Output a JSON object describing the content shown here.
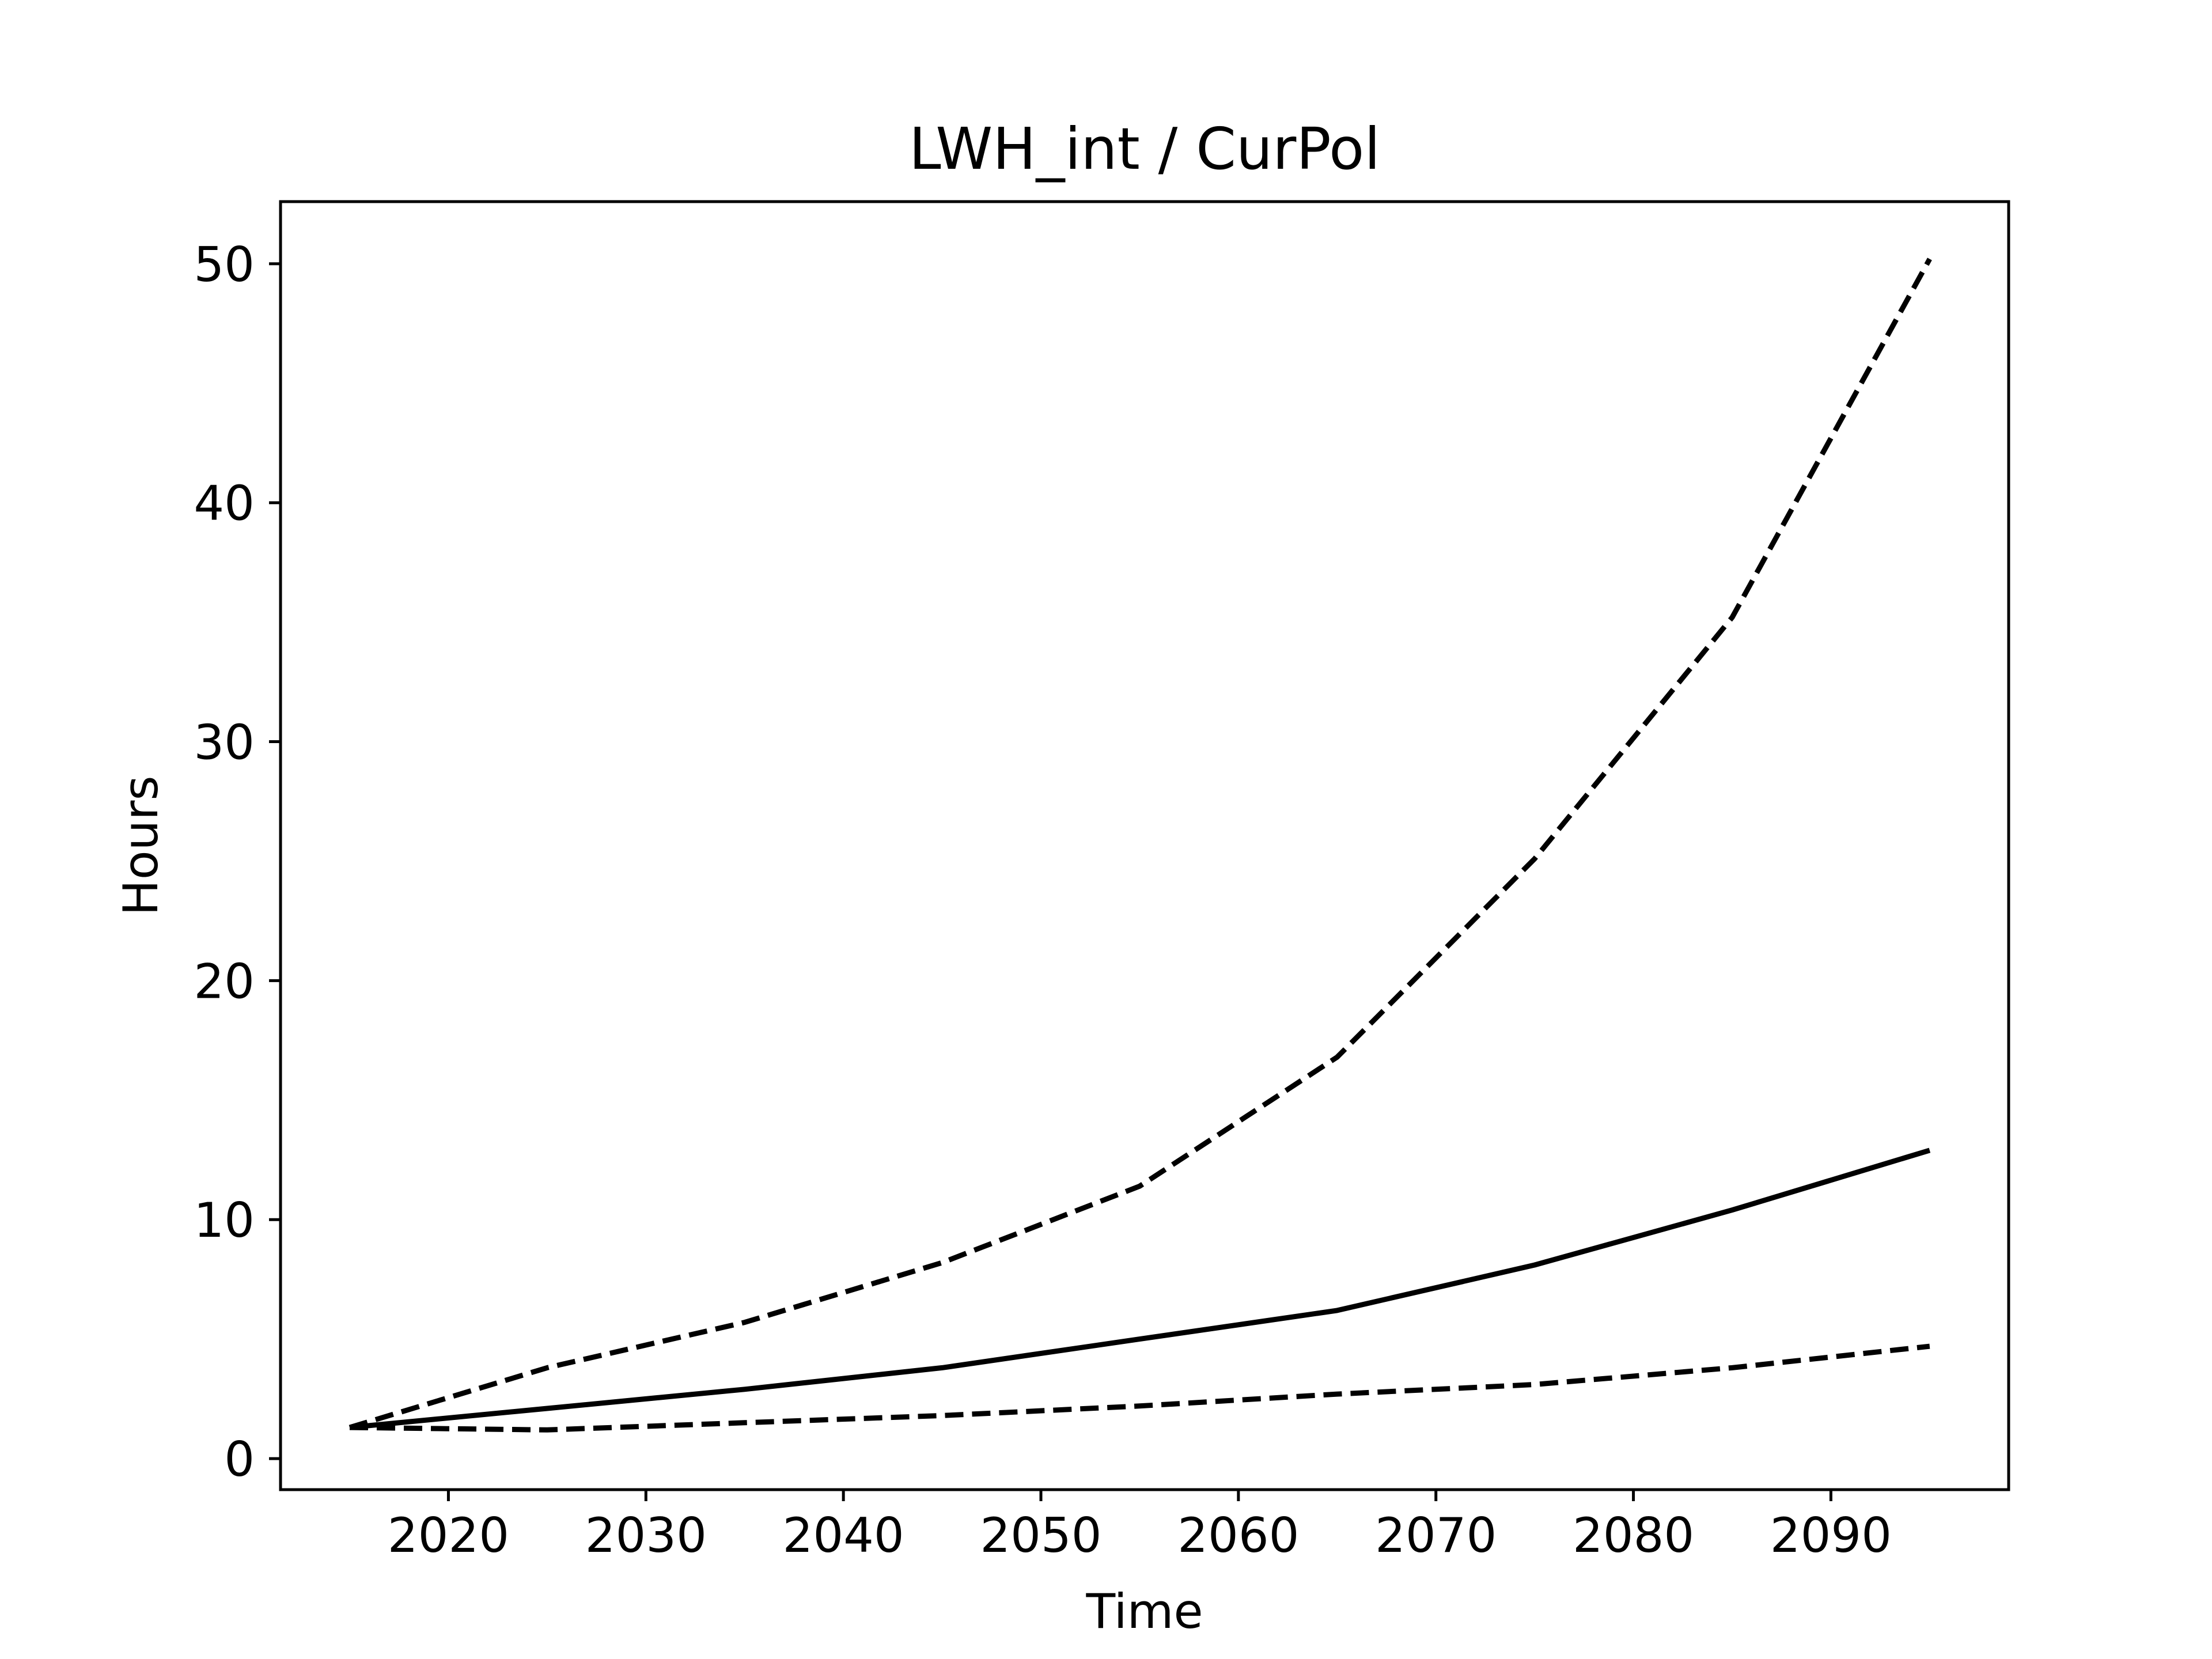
{
  "chart_data": {
    "type": "line",
    "title": "LWH_int / CurPol",
    "xlabel": "Time",
    "ylabel": "Hours",
    "xlim": [
      2011.5,
      2099
    ],
    "ylim": [
      -1.3,
      52.6
    ],
    "xticks": [
      2020,
      2030,
      2040,
      2050,
      2060,
      2070,
      2080,
      2090
    ],
    "yticks": [
      0,
      10,
      20,
      30,
      40,
      50
    ],
    "grid": false,
    "legend": null,
    "colors": {
      "line": "#000000",
      "background": "#ffffff",
      "frame": "#000000"
    },
    "series": [
      {
        "style": "solid",
        "x": [
          2015,
          2025,
          2035,
          2045,
          2055,
          2065,
          2075,
          2085,
          2095
        ],
        "y": [
          1.3,
          2.1,
          2.9,
          3.8,
          5.0,
          6.2,
          8.1,
          10.4,
          12.9
        ]
      },
      {
        "style": "dashed",
        "x": [
          2015,
          2025,
          2035,
          2045,
          2055,
          2065,
          2075,
          2085,
          2095
        ],
        "y": [
          1.3,
          3.8,
          5.7,
          8.2,
          11.4,
          16.8,
          25.1,
          35.2,
          50.2
        ]
      },
      {
        "style": "dashed",
        "x": [
          2015,
          2025,
          2035,
          2045,
          2055,
          2065,
          2075,
          2085,
          2095
        ],
        "y": [
          1.3,
          1.2,
          1.5,
          1.8,
          2.2,
          2.7,
          3.1,
          3.8,
          4.7
        ]
      }
    ]
  }
}
